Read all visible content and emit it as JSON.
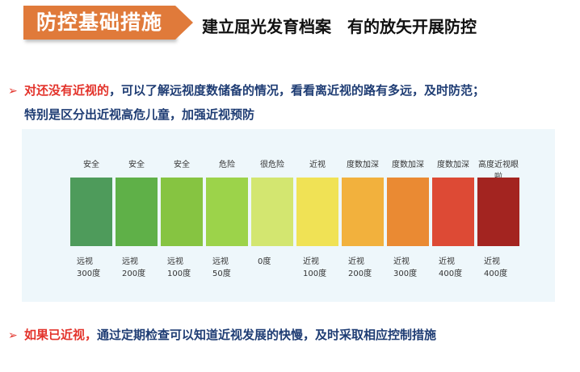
{
  "header": {
    "badge": "防控基础措施",
    "subtitle_part1": "建立屈光发育档案",
    "subtitle_part2": "有的放矢开展防控"
  },
  "bullets": {
    "line1_highlight": "对还没有近视的",
    "line1_rest": "，可以了解远视度数储备的情况，看看离近视的路有多远，及时防范；",
    "line2": "特别是区分出近视高危儿童，加强近视预防",
    "line3_highlight": "如果已近视，",
    "line3_rest": "通过定期检查可以知道近视发展的快慢，及时采取相应控制措施",
    "marker": "➢"
  },
  "scale": {
    "segments": [
      {
        "top_label": "安全",
        "bottom_line1": "远视",
        "bottom_line2": "300度",
        "color": "#4e9b5b"
      },
      {
        "top_label": "安全",
        "bottom_line1": "远视",
        "bottom_line2": "200度",
        "color": "#5fb048"
      },
      {
        "top_label": "安全",
        "bottom_line1": "远视",
        "bottom_line2": "100度",
        "color": "#86c441"
      },
      {
        "top_label": "危险",
        "bottom_line1": "远视",
        "bottom_line2": "50度",
        "color": "#9cd34a"
      },
      {
        "top_label": "很危险",
        "bottom_line1": "0度",
        "bottom_line2": "",
        "color": "#d3e670"
      },
      {
        "top_label": "近视",
        "bottom_line1": "近视",
        "bottom_line2": "100度",
        "color": "#f0e255"
      },
      {
        "top_label": "度数加深",
        "bottom_line1": "近视",
        "bottom_line2": "200度",
        "color": "#f2b13d"
      },
      {
        "top_label": "度数加深",
        "bottom_line1": "近视",
        "bottom_line2": "300度",
        "color": "#ea8a33"
      },
      {
        "top_label": "度数加深",
        "bottom_line1": "近视",
        "bottom_line2": "400度",
        "color": "#dd4a35"
      },
      {
        "top_label": "高度近视眼啦",
        "bottom_line1": "近视",
        "bottom_line2": "400度",
        "color": "#a32420"
      }
    ]
  }
}
